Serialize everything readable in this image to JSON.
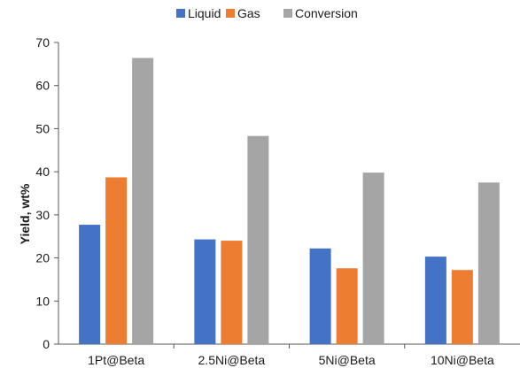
{
  "chart_data": {
    "type": "bar",
    "title": "",
    "xlabel": "",
    "ylabel": "Yield, wt%",
    "ylim": [
      0,
      70
    ],
    "yticks": [
      0,
      10,
      20,
      30,
      40,
      50,
      60,
      70
    ],
    "grid": false,
    "legend_position": "top",
    "categories": [
      "1Pt@Beta",
      "2.5Ni@Beta",
      "5Ni@Beta",
      "10Ni@Beta"
    ],
    "series": [
      {
        "name": "Liquid",
        "color": "#4472C4",
        "values": [
          27.7,
          24.3,
          22.2,
          20.3
        ]
      },
      {
        "name": "Gas",
        "color": "#ED7D31",
        "values": [
          38.7,
          24.0,
          17.6,
          17.2
        ]
      },
      {
        "name": "Conversion",
        "color": "#A5A5A5",
        "values": [
          66.4,
          48.3,
          39.8,
          37.5
        ]
      }
    ]
  }
}
